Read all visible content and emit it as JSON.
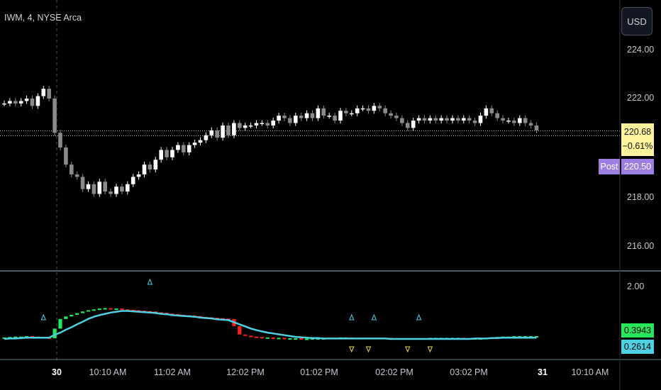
{
  "header": {
    "symbol_title": "IWM, 4, NYSE Arca",
    "currency_label": "USD"
  },
  "price_axis": {
    "ticks": [
      "224.00",
      "222.00",
      "218.00",
      "216.00"
    ]
  },
  "last_price": {
    "value": "220.68",
    "change": "−0.61%",
    "color": "#fff59d"
  },
  "post_market": {
    "label": "Post",
    "value": "220.50",
    "color": "#9c7fe0"
  },
  "indicator_axis": {
    "tick": "2.00"
  },
  "indicator_values": [
    {
      "value": "0.3943",
      "color": "#26e65c"
    },
    {
      "value": "0.2614",
      "color": "#4dd0e1"
    }
  ],
  "time_axis": {
    "labels": [
      "30",
      "10:10 AM",
      "11:02 AM",
      "12:02 PM",
      "01:02 PM",
      "02:02 PM",
      "03:02 PM",
      "31",
      "10:10 AM"
    ]
  },
  "colors": {
    "candle_up": "#ffffff",
    "candle_down": "#8a8a8a",
    "signal_line": "#4dd0e1",
    "hist_up": "#26e65c",
    "hist_down": "#ff1f1f",
    "separator": "#5a7a8c"
  },
  "chart_data": {
    "type": "candlestick",
    "price_series": [
      221.8,
      221.9,
      221.8,
      221.9,
      222.0,
      221.7,
      222.1,
      222.4,
      222.0,
      220.6,
      220.0,
      219.3,
      218.9,
      218.8,
      218.3,
      218.5,
      218.1,
      218.6,
      218.2,
      218.1,
      218.4,
      218.2,
      218.5,
      218.8,
      218.9,
      219.3,
      219.1,
      219.5,
      219.9,
      219.6,
      219.9,
      220.1,
      219.8,
      220.1,
      220.2,
      220.3,
      220.5,
      220.7,
      220.4,
      220.9,
      220.5,
      221.0,
      220.8,
      220.9,
      220.9,
      221.0,
      221.0,
      220.9,
      221.1,
      221.3,
      221.2,
      221.0,
      221.3,
      221.2,
      221.4,
      221.2,
      221.6,
      221.3,
      221.3,
      221.1,
      221.5,
      221.4,
      221.4,
      221.6,
      221.6,
      221.5,
      221.7,
      221.6,
      221.4,
      221.3,
      221.2,
      221.0,
      220.8,
      221.1,
      221.2,
      221.1,
      221.2,
      221.1,
      221.2,
      221.1,
      221.2,
      221.1,
      221.2,
      221.1,
      221.0,
      221.3,
      221.6,
      221.4,
      221.2,
      221.1,
      221.1,
      221.0,
      221.2,
      221.0,
      220.9,
      220.7
    ],
    "signal_line": [
      0.26,
      0.27,
      0.27,
      0.28,
      0.29,
      0.29,
      0.29,
      0.29,
      0.29,
      0.36,
      0.41,
      0.48,
      0.54,
      0.61,
      0.67,
      0.74,
      0.79,
      0.83,
      0.86,
      0.89,
      0.91,
      0.93,
      0.93,
      0.92,
      0.91,
      0.9,
      0.89,
      0.88,
      0.86,
      0.85,
      0.83,
      0.82,
      0.81,
      0.8,
      0.79,
      0.77,
      0.76,
      0.75,
      0.73,
      0.72,
      0.71,
      0.66,
      0.61,
      0.56,
      0.51,
      0.47,
      0.44,
      0.41,
      0.39,
      0.37,
      0.35,
      0.33,
      0.31,
      0.3,
      0.29,
      0.28,
      0.28,
      0.27,
      0.27,
      0.27,
      0.27,
      0.27,
      0.27,
      0.27,
      0.27,
      0.27,
      0.27,
      0.27,
      0.27,
      0.26,
      0.26,
      0.26,
      0.26,
      0.26,
      0.26,
      0.26,
      0.26,
      0.26,
      0.26,
      0.26,
      0.26,
      0.26,
      0.26,
      0.26,
      0.27,
      0.27,
      0.27,
      0.28,
      0.28,
      0.29,
      0.29,
      0.29,
      0.29,
      0.29,
      0.29,
      0.29
    ],
    "histogram_line": [
      0.28,
      0.29,
      0.3,
      0.3,
      0.31,
      0.3,
      0.29,
      0.28,
      0.26,
      0.49,
      0.72,
      0.78,
      0.82,
      0.86,
      0.9,
      0.93,
      0.95,
      0.97,
      0.98,
      0.97,
      0.97,
      0.95,
      0.94,
      0.93,
      0.92,
      0.91,
      0.9,
      0.88,
      0.87,
      0.85,
      0.84,
      0.82,
      0.81,
      0.8,
      0.79,
      0.77,
      0.76,
      0.75,
      0.74,
      0.73,
      0.72,
      0.55,
      0.35,
      0.32,
      0.3,
      0.29,
      0.28,
      0.28,
      0.27,
      0.27,
      0.26,
      0.26,
      0.26,
      0.25,
      0.25,
      0.26,
      0.26,
      0.26,
      0.27,
      0.27,
      0.28,
      0.28,
      0.27,
      0.27,
      0.27,
      0.27,
      0.27,
      0.27,
      0.27,
      0.26,
      0.26,
      0.26,
      0.26,
      0.26,
      0.26,
      0.26,
      0.27,
      0.27,
      0.27,
      0.27,
      0.27,
      0.27,
      0.26,
      0.26,
      0.26,
      0.26,
      0.27,
      0.28,
      0.29,
      0.3,
      0.3,
      0.31,
      0.31,
      0.31,
      0.31,
      0.31
    ],
    "up_arrows": [
      7,
      26,
      62,
      66,
      74
    ],
    "down_arrows": [
      62,
      65,
      72,
      76
    ]
  }
}
